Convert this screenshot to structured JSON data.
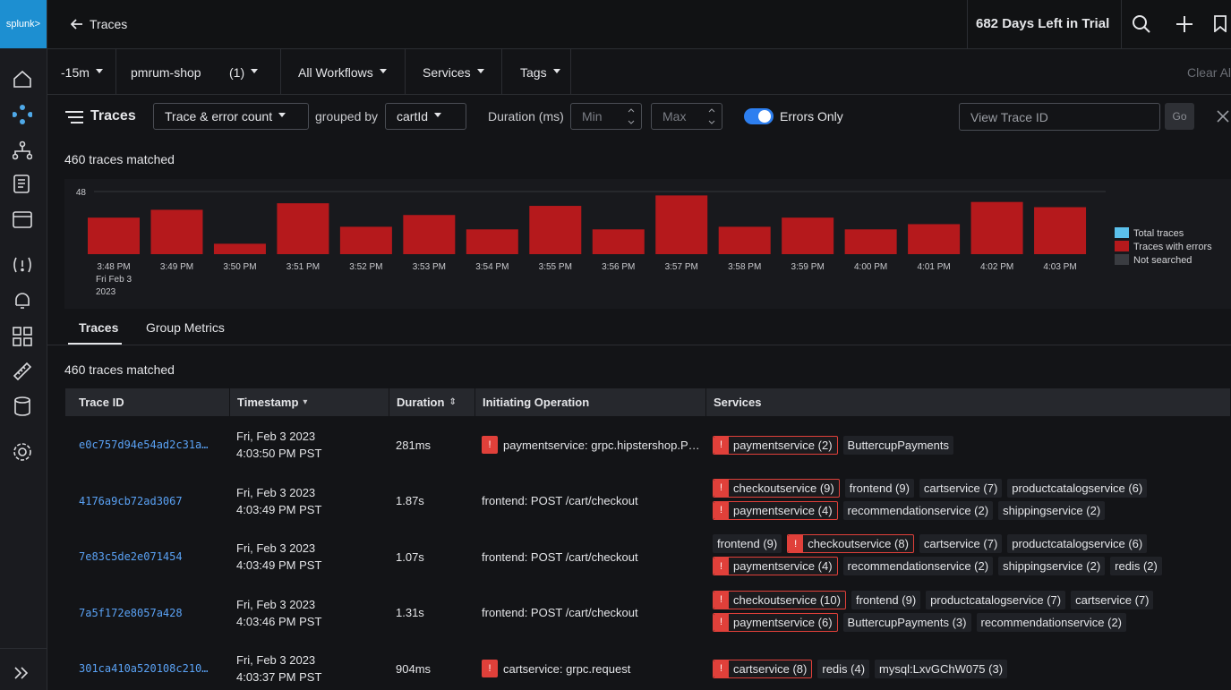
{
  "sidebar": {
    "logo": "splunk>"
  },
  "header": {
    "back": "Traces",
    "trial": "682 Days Left in Trial"
  },
  "filters": {
    "time": "-15m",
    "environment": "pmrum-shop",
    "environment_count": "(1)",
    "workflows": "All Workflows",
    "services": "Services",
    "tags": "Tags",
    "clear": "Clear All"
  },
  "toolbar": {
    "title": "Traces",
    "metric": "Trace & error count",
    "grouped_by_label": "grouped by",
    "grouped_by": "cartId",
    "duration_label": "Duration (ms)",
    "min": "Min",
    "max": "Max",
    "errors_only": "Errors Only",
    "trace_id_placeholder": "View Trace ID",
    "go": "Go"
  },
  "matched_top": "460 traces matched",
  "chart_data": {
    "type": "bar",
    "categories": [
      "3:48 PM",
      "3:49 PM",
      "3:50 PM",
      "3:51 PM",
      "3:52 PM",
      "3:53 PM",
      "3:54 PM",
      "3:55 PM",
      "3:56 PM",
      "3:57 PM",
      "3:58 PM",
      "3:59 PM",
      "4:00 PM",
      "4:01 PM",
      "4:02 PM",
      "4:03 PM"
    ],
    "x_sublabels": [
      "Fri Feb 3",
      "2023"
    ],
    "series": [
      {
        "name": "Traces with errors",
        "color": "#b5191c",
        "values": [
          28,
          34,
          8,
          39,
          21,
          30,
          19,
          37,
          19,
          45,
          21,
          28,
          19,
          23,
          40,
          36
        ]
      }
    ],
    "legend": [
      {
        "name": "Total traces",
        "color": "#5bc0eb"
      },
      {
        "name": "Not searched",
        "color": "#3a3c41"
      }
    ],
    "ylim": [
      0,
      48
    ],
    "yticks": [
      48
    ],
    "grid": true
  },
  "tabs": [
    "Traces",
    "Group Metrics"
  ],
  "matched_table": "460 traces matched",
  "table": {
    "headers": [
      "Trace ID",
      "Timestamp",
      "Duration",
      "Initiating Operation",
      "Services"
    ],
    "rows": [
      {
        "trace_id": "e0c757d94e54ad2c31a…",
        "date": "Fri, Feb 3 2023",
        "time": "4:03:50 PM PST",
        "duration": "281ms",
        "operation": "paymentservice: grpc.hipstershop.P…",
        "operation_error": true,
        "services": [
          {
            "name": "paymentservice (2)",
            "error": true
          },
          {
            "name": "ButtercupPayments",
            "error": false
          }
        ]
      },
      {
        "trace_id": "4176a9cb72ad3067",
        "date": "Fri, Feb 3 2023",
        "time": "4:03:49 PM PST",
        "duration": "1.87s",
        "operation": "frontend: POST /cart/checkout",
        "operation_error": false,
        "services": [
          {
            "name": "checkoutservice (9)",
            "error": true
          },
          {
            "name": "frontend (9)",
            "error": false
          },
          {
            "name": "cartservice (7)",
            "error": false
          },
          {
            "name": "productcatalogservice (6)",
            "error": false
          },
          {
            "name": "paymentservice (4)",
            "error": true
          },
          {
            "name": "recommendationservice (2)",
            "error": false
          },
          {
            "name": "shippingservice (2)",
            "error": false
          }
        ]
      },
      {
        "trace_id": "7e83c5de2e071454",
        "date": "Fri, Feb 3 2023",
        "time": "4:03:49 PM PST",
        "duration": "1.07s",
        "operation": "frontend: POST /cart/checkout",
        "operation_error": false,
        "services": [
          {
            "name": "frontend (9)",
            "error": false
          },
          {
            "name": "checkoutservice (8)",
            "error": true
          },
          {
            "name": "cartservice (7)",
            "error": false
          },
          {
            "name": "productcatalogservice (6)",
            "error": false
          },
          {
            "name": "paymentservice (4)",
            "error": true
          },
          {
            "name": "recommendationservice (2)",
            "error": false
          },
          {
            "name": "shippingservice (2)",
            "error": false
          },
          {
            "name": "redis (2)",
            "error": false
          }
        ]
      },
      {
        "trace_id": "7a5f172e8057a428",
        "date": "Fri, Feb 3 2023",
        "time": "4:03:46 PM PST",
        "duration": "1.31s",
        "operation": "frontend: POST /cart/checkout",
        "operation_error": false,
        "services": [
          {
            "name": "checkoutservice (10)",
            "error": true
          },
          {
            "name": "frontend (9)",
            "error": false
          },
          {
            "name": "productcatalogservice (7)",
            "error": false
          },
          {
            "name": "cartservice (7)",
            "error": false
          },
          {
            "name": "paymentservice (6)",
            "error": true
          },
          {
            "name": "ButtercupPayments (3)",
            "error": false
          },
          {
            "name": "recommendationservice (2)",
            "error": false
          }
        ]
      },
      {
        "trace_id": "301ca410a520108c210…",
        "date": "Fri, Feb 3 2023",
        "time": "4:03:37 PM PST",
        "duration": "904ms",
        "operation": "cartservice: grpc.request",
        "operation_error": true,
        "services": [
          {
            "name": "cartservice (8)",
            "error": true
          },
          {
            "name": "redis (4)",
            "error": false
          },
          {
            "name": "mysql:LxvGChW075 (3)",
            "error": false
          }
        ]
      }
    ]
  }
}
